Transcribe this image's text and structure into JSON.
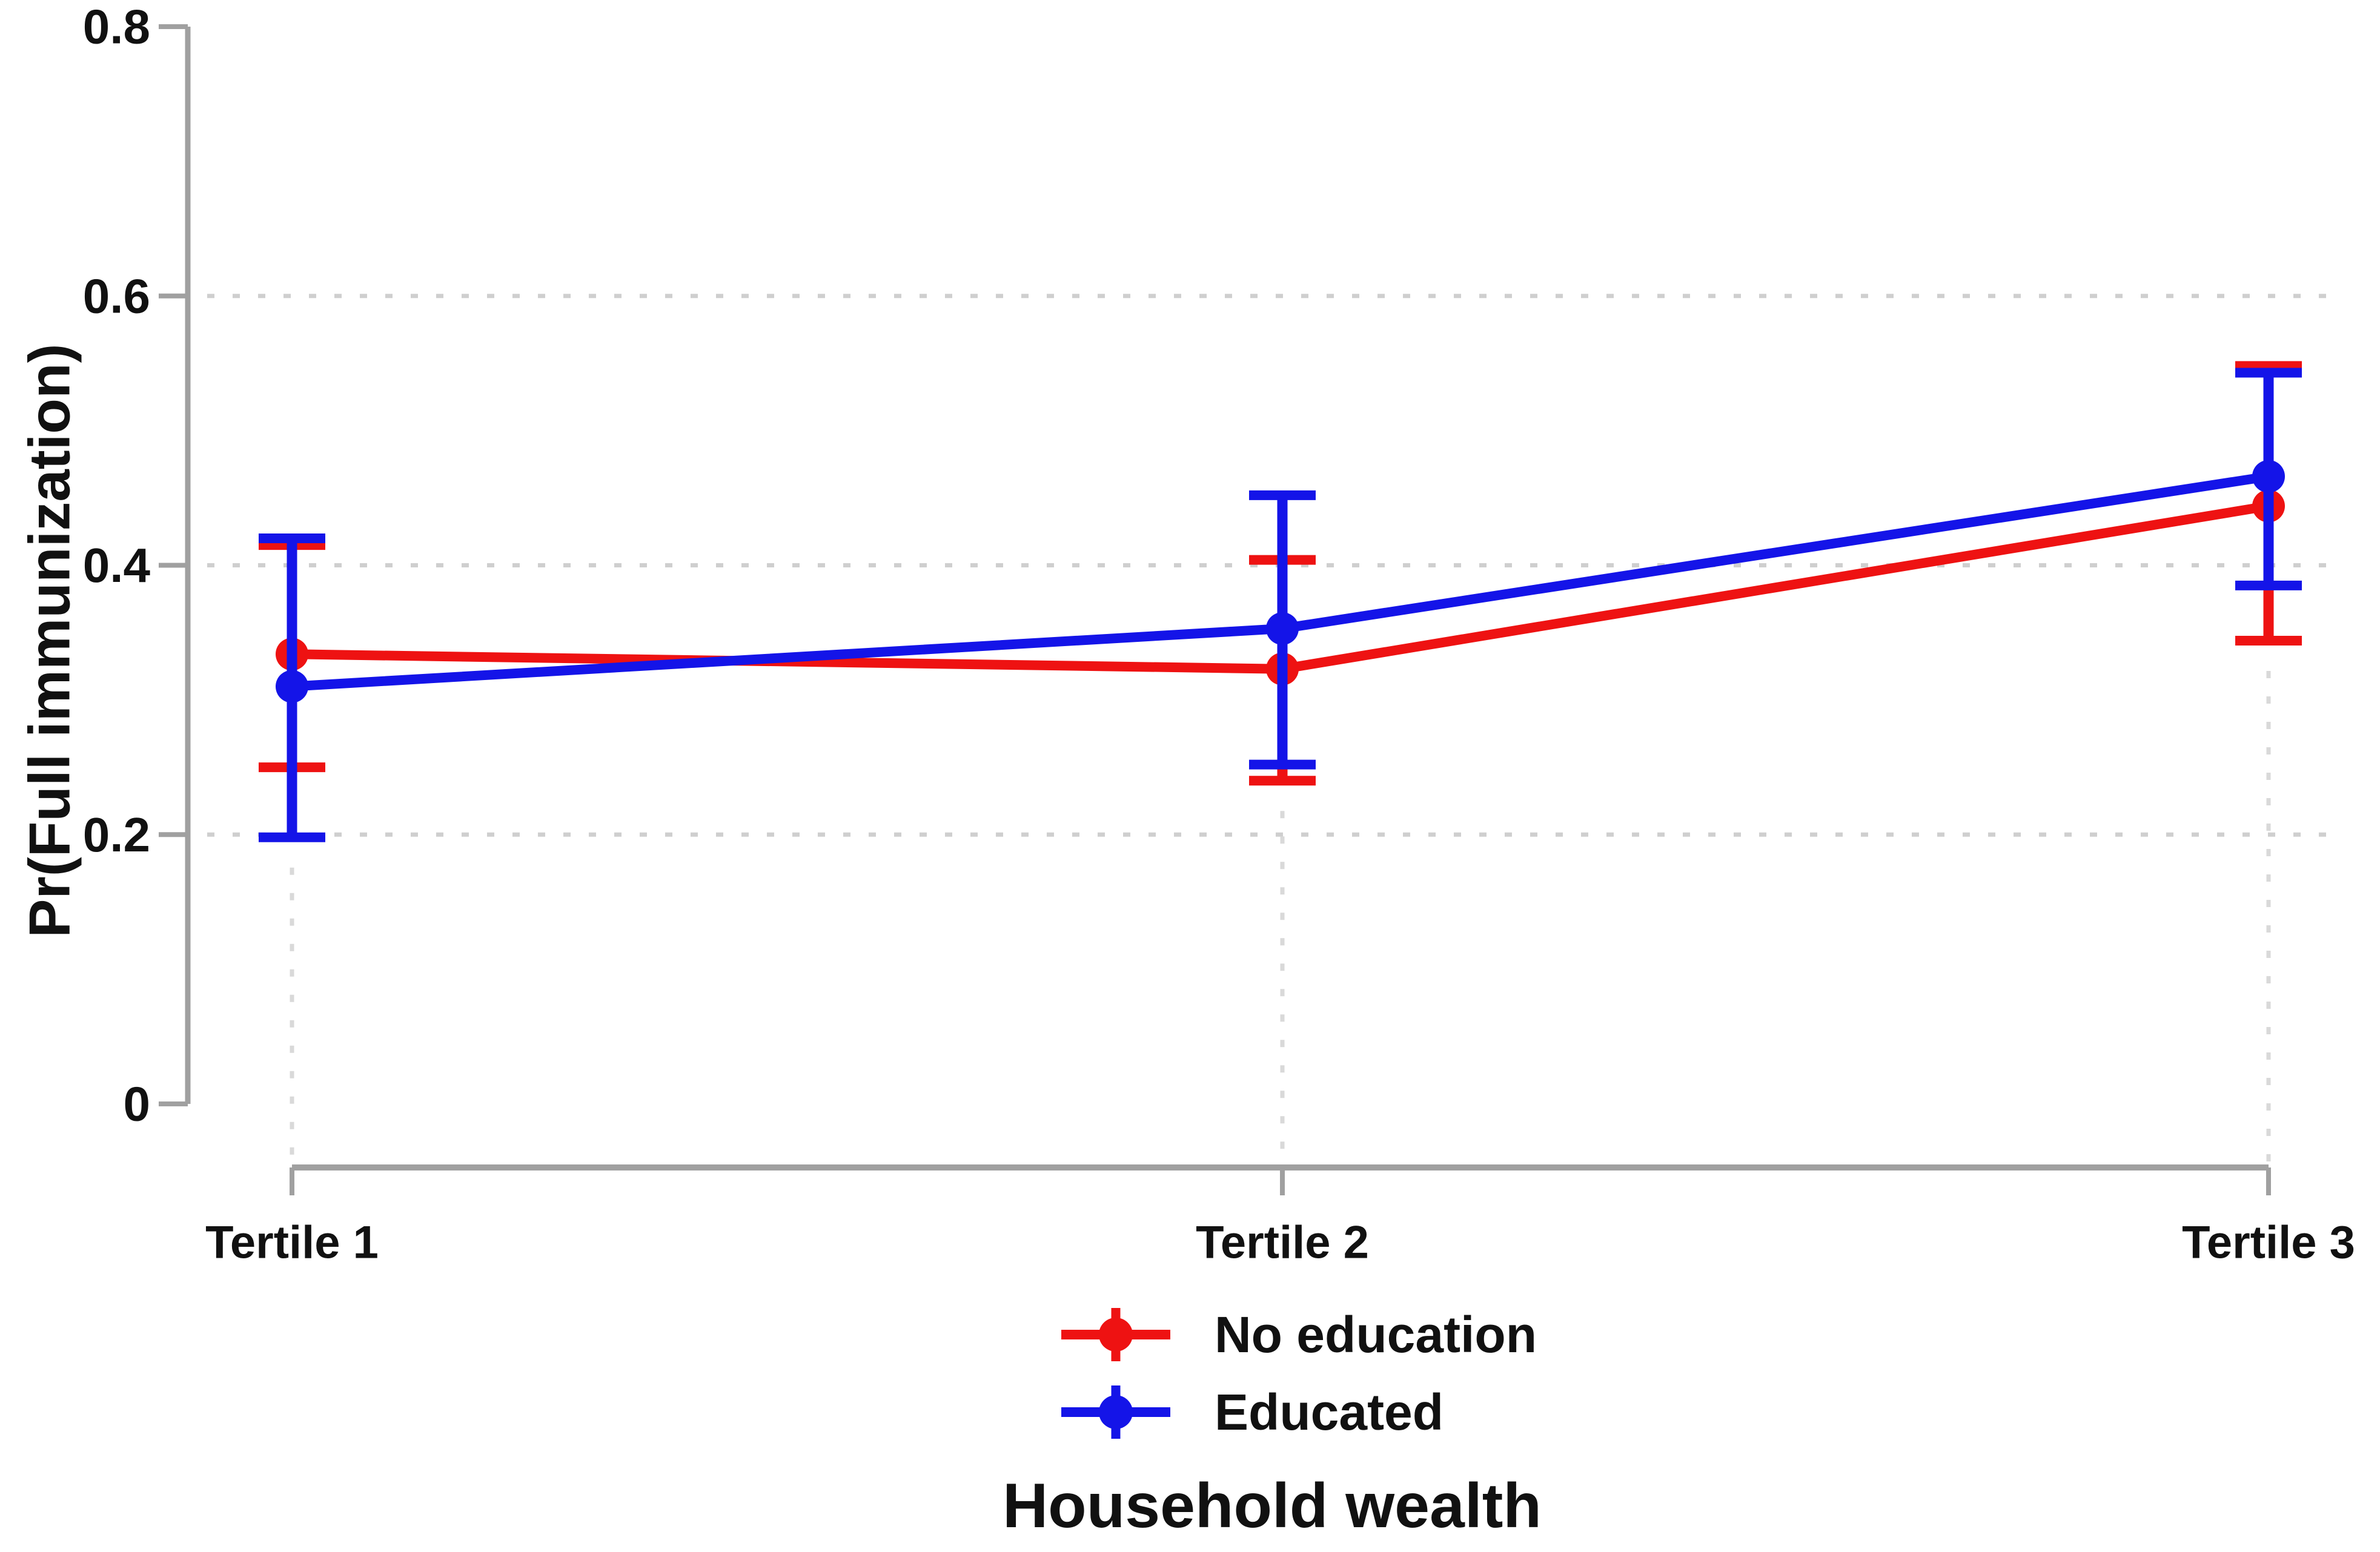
{
  "chart_data": {
    "type": "line",
    "title": "",
    "xlabel": "Household wealth",
    "ylabel": "Pr(Full immunization)",
    "categories": [
      "Tertile 1",
      "Tertile 2",
      "Tertile 3"
    ],
    "ylim": [
      0,
      0.8
    ],
    "yticks": [
      {
        "value": 0,
        "label": "0"
      },
      {
        "value": 0.2,
        "label": "0.2"
      },
      {
        "value": 0.4,
        "label": "0.4"
      },
      {
        "value": 0.6,
        "label": "0.6"
      },
      {
        "value": 0.8,
        "label": "0.8"
      }
    ],
    "grid": {
      "horizontal_y_values": [
        0.2,
        0.4,
        0.6
      ],
      "style": "dotted",
      "vertical_droplines_at_categories": true
    },
    "series": [
      {
        "name": "No education",
        "color": "#EE1212",
        "values": [
          0.334,
          0.323,
          0.444
        ],
        "ci_low": [
          0.25,
          0.24,
          0.344
        ],
        "ci_high": [
          0.415,
          0.404,
          0.548
        ]
      },
      {
        "name": "Educated",
        "color": "#1414E8",
        "values": [
          0.31,
          0.353,
          0.466
        ],
        "ci_low": [
          0.198,
          0.252,
          0.385
        ],
        "ci_high": [
          0.42,
          0.452,
          0.543
        ]
      }
    ],
    "legend": {
      "position": "bottom",
      "entries": [
        {
          "label": "No education",
          "color": "#EE1212"
        },
        {
          "label": "Educated",
          "color": "#1414E8"
        }
      ]
    },
    "colors": {
      "axis": "#A0A0A0",
      "h_gridline": "#CFCFCF",
      "v_gridline": "#D9D9D9",
      "text": "#111111",
      "background": "#FFFFFF"
    }
  }
}
